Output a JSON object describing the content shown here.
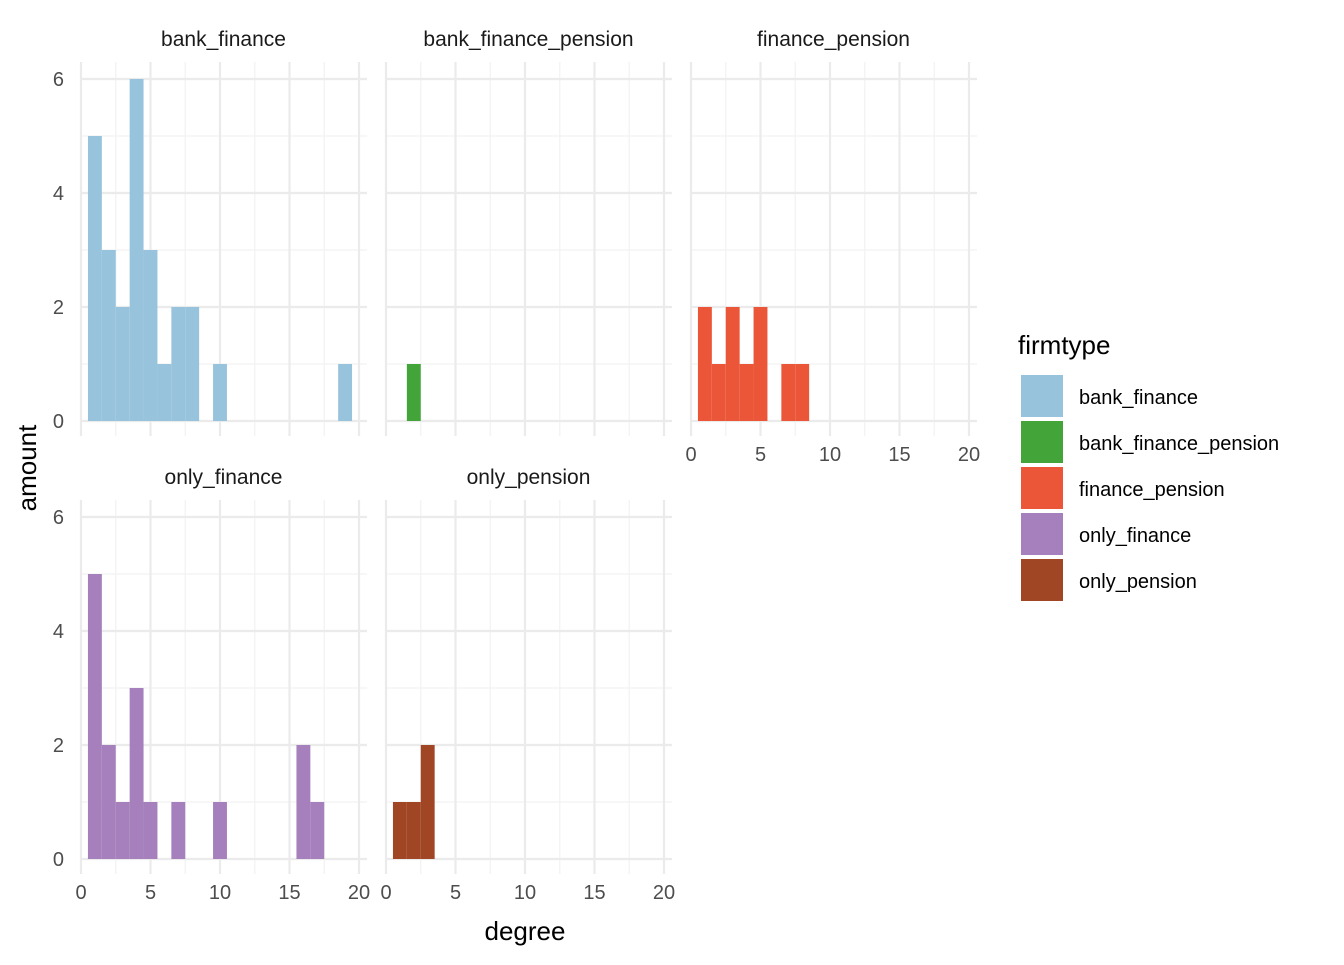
{
  "chart_data": {
    "type": "bar",
    "subtype": "faceted-histogram",
    "xlabel": "degree",
    "ylabel": "amount",
    "xlim": [
      0,
      20
    ],
    "ylim": [
      0,
      6
    ],
    "x_ticks": [
      0,
      5,
      10,
      15,
      20
    ],
    "y_ticks": [
      0,
      2,
      4,
      6
    ],
    "grid": true,
    "bin_width": 1,
    "legend": {
      "title": "firmtype",
      "placement": "right",
      "entries": [
        {
          "label": "bank_finance",
          "color": "#97C3DD"
        },
        {
          "label": "bank_finance_pension",
          "color": "#43A43A"
        },
        {
          "label": "finance_pension",
          "color": "#EB5638"
        },
        {
          "label": "only_finance",
          "color": "#A580BC"
        },
        {
          "label": "only_pension",
          "color": "#A04624"
        }
      ]
    },
    "facets": [
      {
        "title": "bank_finance",
        "color": "#97C3DD",
        "bins": [
          {
            "x": 1,
            "count": 5
          },
          {
            "x": 2,
            "count": 3
          },
          {
            "x": 3,
            "count": 2
          },
          {
            "x": 4,
            "count": 6
          },
          {
            "x": 5,
            "count": 3
          },
          {
            "x": 6,
            "count": 1
          },
          {
            "x": 7,
            "count": 2
          },
          {
            "x": 8,
            "count": 2
          },
          {
            "x": 10,
            "count": 1
          },
          {
            "x": 19,
            "count": 1
          }
        ]
      },
      {
        "title": "bank_finance_pension",
        "color": "#43A43A",
        "bins": [
          {
            "x": 2,
            "count": 1
          }
        ]
      },
      {
        "title": "finance_pension",
        "color": "#EB5638",
        "bins": [
          {
            "x": 1,
            "count": 2
          },
          {
            "x": 2,
            "count": 1
          },
          {
            "x": 3,
            "count": 2
          },
          {
            "x": 4,
            "count": 1
          },
          {
            "x": 5,
            "count": 2
          },
          {
            "x": 7,
            "count": 1
          },
          {
            "x": 8,
            "count": 1
          }
        ]
      },
      {
        "title": "only_finance",
        "color": "#A580BC",
        "bins": [
          {
            "x": 1,
            "count": 5
          },
          {
            "x": 2,
            "count": 2
          },
          {
            "x": 3,
            "count": 1
          },
          {
            "x": 4,
            "count": 3
          },
          {
            "x": 5,
            "count": 1
          },
          {
            "x": 7,
            "count": 1
          },
          {
            "x": 10,
            "count": 1
          },
          {
            "x": 16,
            "count": 2
          },
          {
            "x": 17,
            "count": 1
          }
        ]
      },
      {
        "title": "only_pension",
        "color": "#A04624",
        "bins": [
          {
            "x": 1,
            "count": 1
          },
          {
            "x": 2,
            "count": 1
          },
          {
            "x": 3,
            "count": 2
          }
        ]
      }
    ]
  }
}
